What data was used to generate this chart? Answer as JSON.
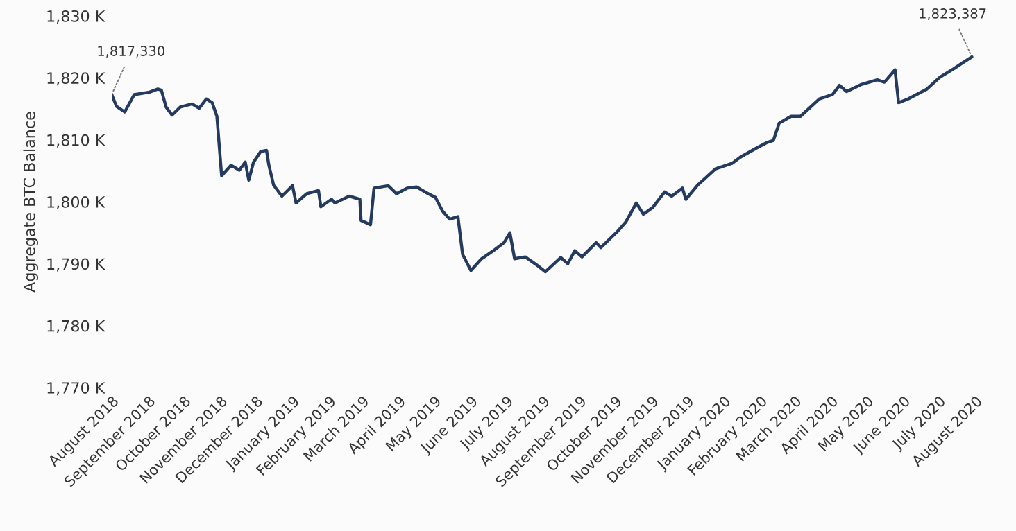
{
  "chart_data": {
    "type": "line",
    "ylabel": "Aggregate BTC Balance",
    "x": [
      "2018-08-01",
      "2018-08-05",
      "2018-08-12",
      "2018-08-20",
      "2018-09-02",
      "2018-09-09",
      "2018-09-12",
      "2018-09-16",
      "2018-09-21",
      "2018-09-28",
      "2018-10-08",
      "2018-10-14",
      "2018-10-20",
      "2018-10-25",
      "2018-10-29",
      "2018-11-02",
      "2018-11-10",
      "2018-11-17",
      "2018-11-22",
      "2018-11-25",
      "2018-11-29",
      "2018-12-05",
      "2018-12-10",
      "2018-12-12",
      "2018-12-16",
      "2018-12-23",
      "2019-01-01",
      "2019-01-04",
      "2019-01-13",
      "2019-01-23",
      "2019-01-25",
      "2019-02-03",
      "2019-02-06",
      "2019-02-18",
      "2019-02-27",
      "2019-02-28",
      "2019-03-08",
      "2019-03-11",
      "2019-03-23",
      "2019-03-30",
      "2019-04-08",
      "2019-04-16",
      "2019-04-24",
      "2019-05-02",
      "2019-05-08",
      "2019-05-14",
      "2019-05-21",
      "2019-05-25",
      "2019-06-01",
      "2019-06-10",
      "2019-06-20",
      "2019-06-29",
      "2019-07-04",
      "2019-07-08",
      "2019-07-17",
      "2019-07-26",
      "2019-08-03",
      "2019-08-16",
      "2019-08-22",
      "2019-08-28",
      "2019-09-03",
      "2019-09-15",
      "2019-09-19",
      "2019-10-03",
      "2019-10-10",
      "2019-10-19",
      "2019-10-25",
      "2019-11-02",
      "2019-11-12",
      "2019-11-18",
      "2019-11-27",
      "2019-11-30",
      "2019-12-10",
      "2019-12-25",
      "2020-01-08",
      "2020-01-15",
      "2020-01-28",
      "2020-02-07",
      "2020-02-12",
      "2020-02-17",
      "2020-02-27",
      "2020-03-06",
      "2020-03-22",
      "2020-04-02",
      "2020-04-08",
      "2020-04-14",
      "2020-04-26",
      "2020-05-10",
      "2020-05-16",
      "2020-05-25",
      "2020-05-28",
      "2020-06-05",
      "2020-06-14",
      "2020-06-21",
      "2020-07-02",
      "2020-07-14",
      "2020-07-21",
      "2020-07-29"
    ],
    "series": [
      {
        "color": "#243a5e",
        "values": [
          1817330,
          1815400,
          1814500,
          1817300,
          1817700,
          1818200,
          1818000,
          1815300,
          1814000,
          1815300,
          1815800,
          1815100,
          1816600,
          1816000,
          1813800,
          1804200,
          1805900,
          1805100,
          1806400,
          1803500,
          1806400,
          1808100,
          1808300,
          1805900,
          1802700,
          1800900,
          1802600,
          1799800,
          1801300,
          1801800,
          1799200,
          1800400,
          1799800,
          1800900,
          1800400,
          1797000,
          1796300,
          1802200,
          1802600,
          1801300,
          1802200,
          1802400,
          1801500,
          1800700,
          1798500,
          1797200,
          1797600,
          1791500,
          1788900,
          1790800,
          1792100,
          1793400,
          1795000,
          1790800,
          1791100,
          1789900,
          1788700,
          1791000,
          1790000,
          1792100,
          1791100,
          1793400,
          1792600,
          1795200,
          1796700,
          1799800,
          1798000,
          1799100,
          1801600,
          1800900,
          1802200,
          1800400,
          1802700,
          1805300,
          1806200,
          1807200,
          1808600,
          1809600,
          1809900,
          1812700,
          1813800,
          1813800,
          1816600,
          1817300,
          1818800,
          1817800,
          1818900,
          1819700,
          1819300,
          1821300,
          1816000,
          1816600,
          1817500,
          1818200,
          1820100,
          1821500,
          1822400,
          1823387
        ]
      }
    ],
    "xlim": [
      "2018-08-01",
      "2020-08-01"
    ],
    "xticks": [
      {
        "value": "2018-08-01",
        "label": "August 2018"
      },
      {
        "value": "2018-09-01",
        "label": "September 2018"
      },
      {
        "value": "2018-10-01",
        "label": "October 2018"
      },
      {
        "value": "2018-11-01",
        "label": "November 2018"
      },
      {
        "value": "2018-12-01",
        "label": "December 2018"
      },
      {
        "value": "2019-01-01",
        "label": "January 2019"
      },
      {
        "value": "2019-02-01",
        "label": "February 2019"
      },
      {
        "value": "2019-03-01",
        "label": "March 2019"
      },
      {
        "value": "2019-04-01",
        "label": "April 2019"
      },
      {
        "value": "2019-05-01",
        "label": "May 2019"
      },
      {
        "value": "2019-06-01",
        "label": "June 2019"
      },
      {
        "value": "2019-07-01",
        "label": "July 2019"
      },
      {
        "value": "2019-08-01",
        "label": "August 2019"
      },
      {
        "value": "2019-09-01",
        "label": "September 2019"
      },
      {
        "value": "2019-10-01",
        "label": "October 2019"
      },
      {
        "value": "2019-11-01",
        "label": "November 2019"
      },
      {
        "value": "2019-12-01",
        "label": "December 2019"
      },
      {
        "value": "2020-01-01",
        "label": "January 2020"
      },
      {
        "value": "2020-02-01",
        "label": "February 2020"
      },
      {
        "value": "2020-03-01",
        "label": "March 2020"
      },
      {
        "value": "2020-04-01",
        "label": "April 2020"
      },
      {
        "value": "2020-05-01",
        "label": "May 2020"
      },
      {
        "value": "2020-06-01",
        "label": "June 2020"
      },
      {
        "value": "2020-07-01",
        "label": "July 2020"
      },
      {
        "value": "2020-08-01",
        "label": "August 2020"
      }
    ],
    "ylim": [
      1770000,
      1830000
    ],
    "yticks": [
      {
        "value": 1770000,
        "label": "1,770 K"
      },
      {
        "value": 1780000,
        "label": "1,780 K"
      },
      {
        "value": 1790000,
        "label": "1,790 K"
      },
      {
        "value": 1800000,
        "label": "1,800 K"
      },
      {
        "value": 1810000,
        "label": "1,810 K"
      },
      {
        "value": 1820000,
        "label": "1,820 K"
      },
      {
        "value": 1830000,
        "label": "1,830 K"
      }
    ],
    "annotations": [
      {
        "text": "1,817,330",
        "x": "2018-08-01",
        "y": 1817330
      },
      {
        "text": "1,823,387",
        "x": "2020-07-29",
        "y": 1823387
      }
    ],
    "grid": false,
    "legend": false,
    "line_style": "solid",
    "marker": "none"
  }
}
